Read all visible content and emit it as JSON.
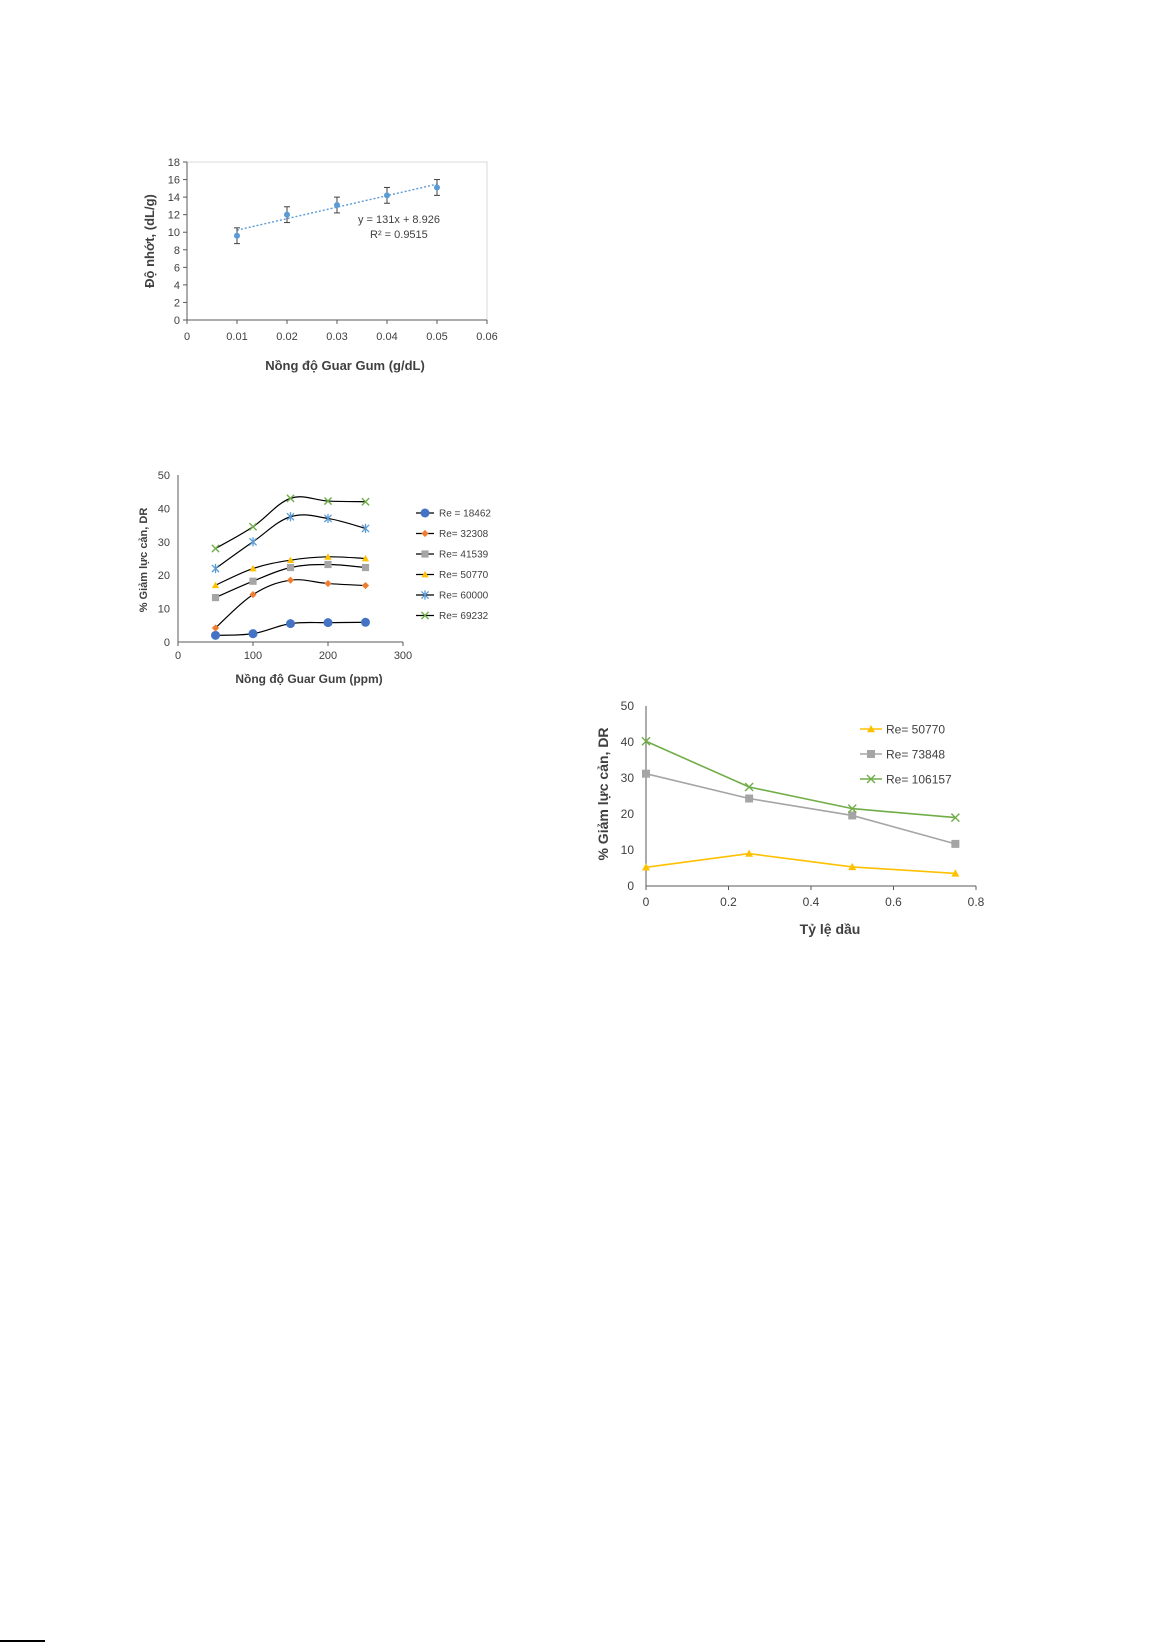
{
  "chart_data": [
    {
      "type": "scatter",
      "xlabel": "Nồng độ Guar Gum (g/dL)",
      "ylabel": "Độ nhớt, (dL/g)",
      "xlim": [
        0,
        0.06
      ],
      "ylim": [
        0,
        18
      ],
      "xticks": [
        "0",
        "0.01",
        "0.02",
        "0.03",
        "0.04",
        "0.05",
        "0.06"
      ],
      "yticks": [
        "0",
        "2",
        "4",
        "6",
        "8",
        "10",
        "12",
        "14",
        "16",
        "18"
      ],
      "xtick_values": [
        0,
        0.01,
        0.02,
        0.03,
        0.04,
        0.05,
        0.06
      ],
      "ytick_values": [
        0,
        2,
        4,
        6,
        8,
        10,
        12,
        14,
        16,
        18
      ],
      "points": [
        {
          "x": 0.01,
          "y": 9.6,
          "err": 0.9
        },
        {
          "x": 0.02,
          "y": 12.0,
          "err": 0.9
        },
        {
          "x": 0.03,
          "y": 13.1,
          "err": 0.9
        },
        {
          "x": 0.04,
          "y": 14.2,
          "err": 0.9
        },
        {
          "x": 0.05,
          "y": 15.1,
          "err": 0.9
        }
      ],
      "trendline": {
        "slope": 131,
        "intercept": 8.926,
        "x_range": [
          0.01,
          0.05
        ]
      },
      "equation_label": "y = 131x + 8.926",
      "r2_label": "R² = 0.9515",
      "grid": false,
      "color": "#5b9bd5"
    },
    {
      "type": "line",
      "xlabel": "Nồng độ Guar Gum (ppm)",
      "ylabel": "% Giảm lực cản, DR",
      "xlim": [
        0,
        300
      ],
      "ylim": [
        0,
        50
      ],
      "xticks": [
        "0",
        "100",
        "200",
        "300"
      ],
      "yticks": [
        "0",
        "10",
        "20",
        "30",
        "40",
        "50"
      ],
      "xtick_values": [
        0,
        100,
        200,
        300
      ],
      "ytick_values": [
        0,
        10,
        20,
        30,
        40,
        50
      ],
      "x": [
        50,
        100,
        150,
        200,
        250
      ],
      "legend_position": "right",
      "series": [
        {
          "name": "Re = 18462",
          "values": [
            2,
            2.5,
            5.5,
            5.8,
            5.9
          ],
          "color": "#4472c4",
          "marker": "circle"
        },
        {
          "name": "Re= 32308",
          "values": [
            4.2,
            14.2,
            18.5,
            17.5,
            16.9
          ],
          "color": "#ed7d31",
          "marker": "diamond"
        },
        {
          "name": "Re= 41539",
          "values": [
            13.3,
            18.2,
            22.3,
            23.2,
            22.3
          ],
          "color": "#a5a5a5",
          "marker": "square"
        },
        {
          "name": "Re= 50770",
          "values": [
            17,
            22,
            24.5,
            25.5,
            25
          ],
          "color": "#ffc000",
          "marker": "triangle"
        },
        {
          "name": "Re= 60000",
          "values": [
            22,
            30,
            37.5,
            37,
            34
          ],
          "color": "#5b9bd5",
          "marker": "star"
        },
        {
          "name": "Re= 69232",
          "values": [
            28,
            34.5,
            43,
            42.2,
            42
          ],
          "color": "#70ad47",
          "marker": "x"
        }
      ]
    },
    {
      "type": "line",
      "xlabel": "Tỷ lệ dầu",
      "ylabel": "% Giảm lực cản, DR",
      "xlim": [
        0,
        0.8
      ],
      "ylim": [
        0,
        50
      ],
      "xticks": [
        "0",
        "0.2",
        "0.4",
        "0.6",
        "0.8"
      ],
      "yticks": [
        "0",
        "10",
        "20",
        "30",
        "40",
        "50"
      ],
      "xtick_values": [
        0,
        0.2,
        0.4,
        0.6,
        0.8
      ],
      "ytick_values": [
        0,
        10,
        20,
        30,
        40,
        50
      ],
      "x": [
        0,
        0.25,
        0.5,
        0.75
      ],
      "legend_position": "top-right",
      "series": [
        {
          "name": "Re= 50770",
          "values": [
            5.2,
            9,
            5.3,
            3.5
          ],
          "color": "#ffc000",
          "marker": "triangle"
        },
        {
          "name": "Re= 73848",
          "values": [
            31.2,
            24.3,
            19.6,
            11.7
          ],
          "color": "#a5a5a5",
          "marker": "square"
        },
        {
          "name": "Re= 106157",
          "values": [
            40.2,
            27.5,
            21.5,
            19
          ],
          "color": "#70ad47",
          "marker": "x"
        }
      ]
    }
  ]
}
